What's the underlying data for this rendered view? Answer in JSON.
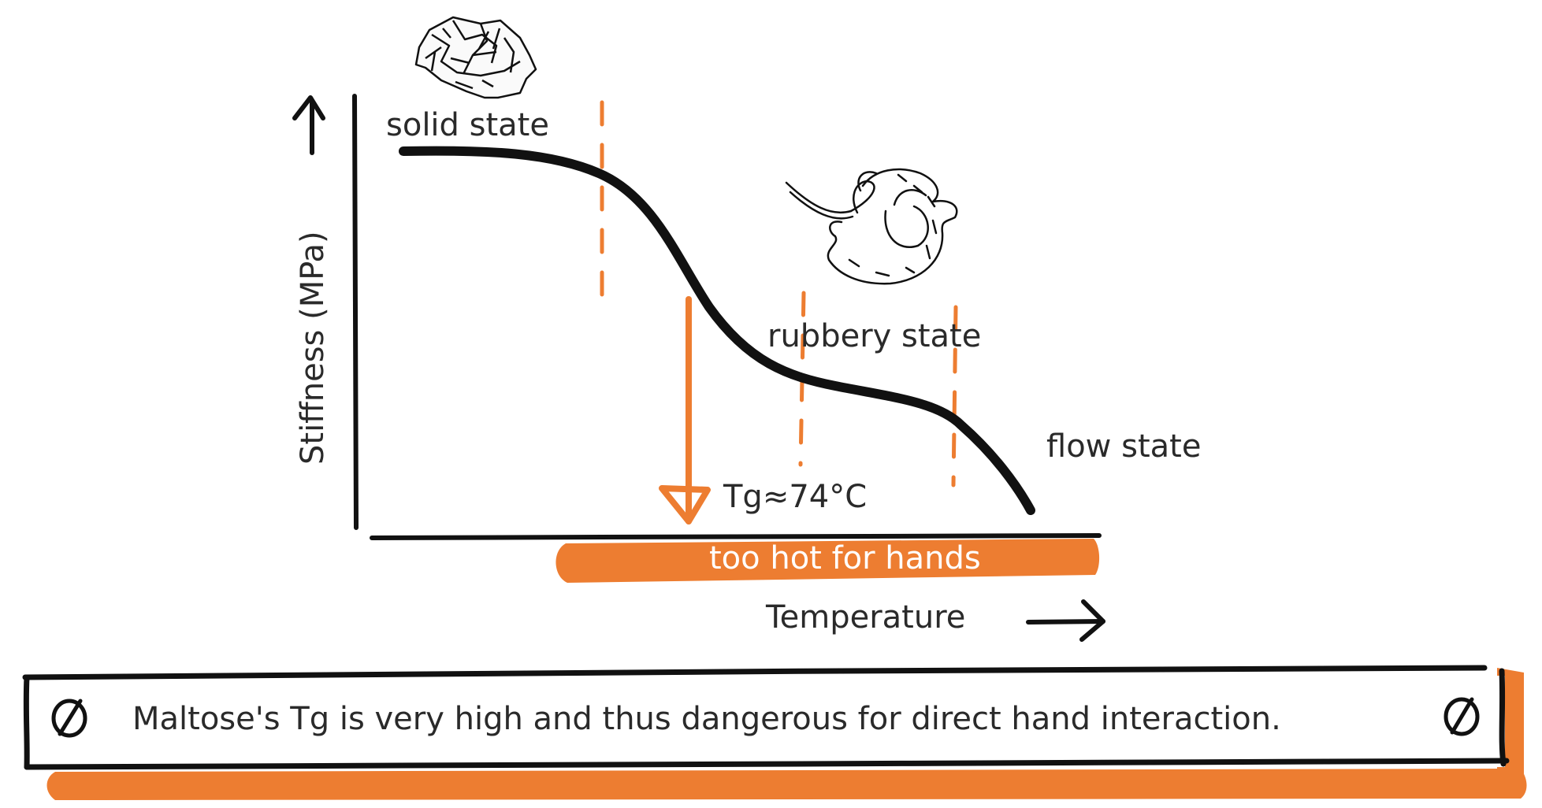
{
  "diagram": {
    "y_axis_label": "Stiffness (MPa)",
    "x_axis_label": "Temperature",
    "states": {
      "solid": "solid state",
      "rubbery": "rubbery state",
      "flow": "flow state"
    },
    "tg_label": "Tg≈74°C",
    "hot_zone_label": "too hot for hands",
    "colors": {
      "accent": "#ED7D31",
      "ink": "#111111",
      "text": "#2a2a2a"
    }
  },
  "callout": {
    "icon_left": "prohibited-icon",
    "text": "Maltose's Tg is very high and thus dangerous for direct hand interaction.",
    "icon_right": "prohibited-icon"
  }
}
